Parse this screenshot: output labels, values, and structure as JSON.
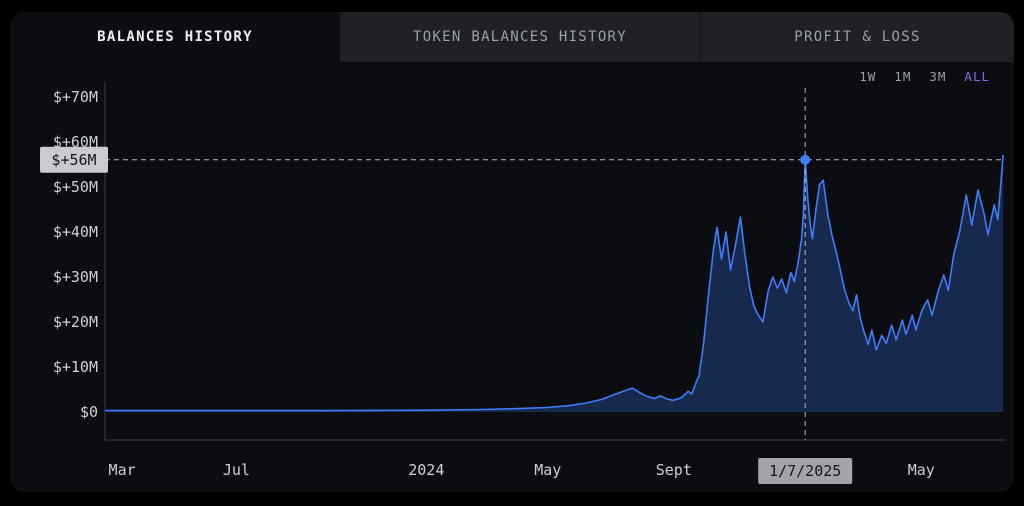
{
  "tabs": [
    {
      "label": "BALANCES HISTORY",
      "active": true
    },
    {
      "label": "TOKEN BALANCES HISTORY",
      "active": false
    },
    {
      "label": "PROFIT & LOSS",
      "active": false
    }
  ],
  "range_selector": {
    "options": [
      {
        "label": "1W",
        "active": false
      },
      {
        "label": "1M",
        "active": false
      },
      {
        "label": "3M",
        "active": false
      },
      {
        "label": "ALL",
        "active": true
      }
    ]
  },
  "chart_data": {
    "type": "area",
    "title": "Balances History",
    "unit": "USD millions",
    "ylim": [
      0,
      71.5
    ],
    "grid": false,
    "y_ticks": [
      {
        "label": "$+70M",
        "value": 70
      },
      {
        "label": "$+60M",
        "value": 60
      },
      {
        "label": "$+50M",
        "value": 50
      },
      {
        "label": "$+40M",
        "value": 40
      },
      {
        "label": "$+30M",
        "value": 30
      },
      {
        "label": "$+20M",
        "value": 20
      },
      {
        "label": "$+10M",
        "value": 10
      },
      {
        "label": "$0",
        "value": 0
      }
    ],
    "x_ticks": [
      {
        "label": "Mar",
        "pos": 0.019
      },
      {
        "label": "Jul",
        "pos": 0.146
      },
      {
        "label": "2024",
        "pos": 0.357
      },
      {
        "label": "May",
        "pos": 0.492
      },
      {
        "label": "Sept",
        "pos": 0.632
      },
      {
        "label": "May",
        "pos": 0.907
      }
    ],
    "crosshair": {
      "x": 0.778,
      "value": 56,
      "y_label": "$+56M",
      "x_label": "1/7/2025"
    },
    "points": [
      [
        0.0,
        0.3
      ],
      [
        0.06,
        0.3
      ],
      [
        0.12,
        0.3
      ],
      [
        0.18,
        0.3
      ],
      [
        0.24,
        0.3
      ],
      [
        0.3,
        0.35
      ],
      [
        0.36,
        0.4
      ],
      [
        0.42,
        0.55
      ],
      [
        0.46,
        0.75
      ],
      [
        0.49,
        1.0
      ],
      [
        0.515,
        1.4
      ],
      [
        0.535,
        2.0
      ],
      [
        0.552,
        2.8
      ],
      [
        0.565,
        3.8
      ],
      [
        0.576,
        4.6
      ],
      [
        0.586,
        5.3
      ],
      [
        0.594,
        4.3
      ],
      [
        0.603,
        3.4
      ],
      [
        0.611,
        3.0
      ],
      [
        0.617,
        3.6
      ],
      [
        0.624,
        2.9
      ],
      [
        0.631,
        2.6
      ],
      [
        0.64,
        3.1
      ],
      [
        0.648,
        4.6
      ],
      [
        0.652,
        4.0
      ],
      [
        0.656,
        6.2
      ],
      [
        0.66,
        8.0
      ],
      [
        0.665,
        15.0
      ],
      [
        0.67,
        25.0
      ],
      [
        0.676,
        36.0
      ],
      [
        0.68,
        41.0
      ],
      [
        0.685,
        34.0
      ],
      [
        0.69,
        40.0
      ],
      [
        0.695,
        31.5
      ],
      [
        0.7,
        36.5
      ],
      [
        0.706,
        43.3
      ],
      [
        0.711,
        35.0
      ],
      [
        0.716,
        28.0
      ],
      [
        0.721,
        23.5
      ],
      [
        0.726,
        21.5
      ],
      [
        0.731,
        20.0
      ],
      [
        0.737,
        27.0
      ],
      [
        0.742,
        30.0
      ],
      [
        0.747,
        27.5
      ],
      [
        0.752,
        29.5
      ],
      [
        0.757,
        26.5
      ],
      [
        0.762,
        31.0
      ],
      [
        0.766,
        29.0
      ],
      [
        0.77,
        33.0
      ],
      [
        0.774,
        38.5
      ],
      [
        0.776,
        44.0
      ],
      [
        0.778,
        56.0
      ],
      [
        0.781,
        47.0
      ],
      [
        0.784,
        41.0
      ],
      [
        0.786,
        38.5
      ],
      [
        0.79,
        45.0
      ],
      [
        0.794,
        50.5
      ],
      [
        0.798,
        51.5
      ],
      [
        0.803,
        44.0
      ],
      [
        0.808,
        39.0
      ],
      [
        0.812,
        36.0
      ],
      [
        0.817,
        31.5
      ],
      [
        0.822,
        27.0
      ],
      [
        0.827,
        24.0
      ],
      [
        0.831,
        22.5
      ],
      [
        0.835,
        26.0
      ],
      [
        0.839,
        21.0
      ],
      [
        0.843,
        18.0
      ],
      [
        0.848,
        15.0
      ],
      [
        0.852,
        18.2
      ],
      [
        0.857,
        13.8
      ],
      [
        0.863,
        17.0
      ],
      [
        0.868,
        15.2
      ],
      [
        0.874,
        19.3
      ],
      [
        0.879,
        16.0
      ],
      [
        0.886,
        20.4
      ],
      [
        0.89,
        17.2
      ],
      [
        0.897,
        21.5
      ],
      [
        0.901,
        18.2
      ],
      [
        0.908,
        22.7
      ],
      [
        0.914,
        24.9
      ],
      [
        0.919,
        21.5
      ],
      [
        0.926,
        27.0
      ],
      [
        0.932,
        30.4
      ],
      [
        0.937,
        27.0
      ],
      [
        0.943,
        34.9
      ],
      [
        0.95,
        40.4
      ],
      [
        0.957,
        48.2
      ],
      [
        0.963,
        41.5
      ],
      [
        0.97,
        49.3
      ],
      [
        0.977,
        43.8
      ],
      [
        0.981,
        39.3
      ],
      [
        0.988,
        46.0
      ],
      [
        0.992,
        42.7
      ],
      [
        0.998,
        57.1
      ]
    ],
    "colors": {
      "line": "#3e7dfc",
      "fill": "#17294d",
      "axis": "#3a3e45",
      "dash": "#d2d6db",
      "tick_text": "#ccd1d7",
      "ylabel_bg": "#c9cbce",
      "xlabel_bg": "#a2a4a8",
      "label_text": "#16171a",
      "accent_purple": "#8269e6"
    }
  }
}
